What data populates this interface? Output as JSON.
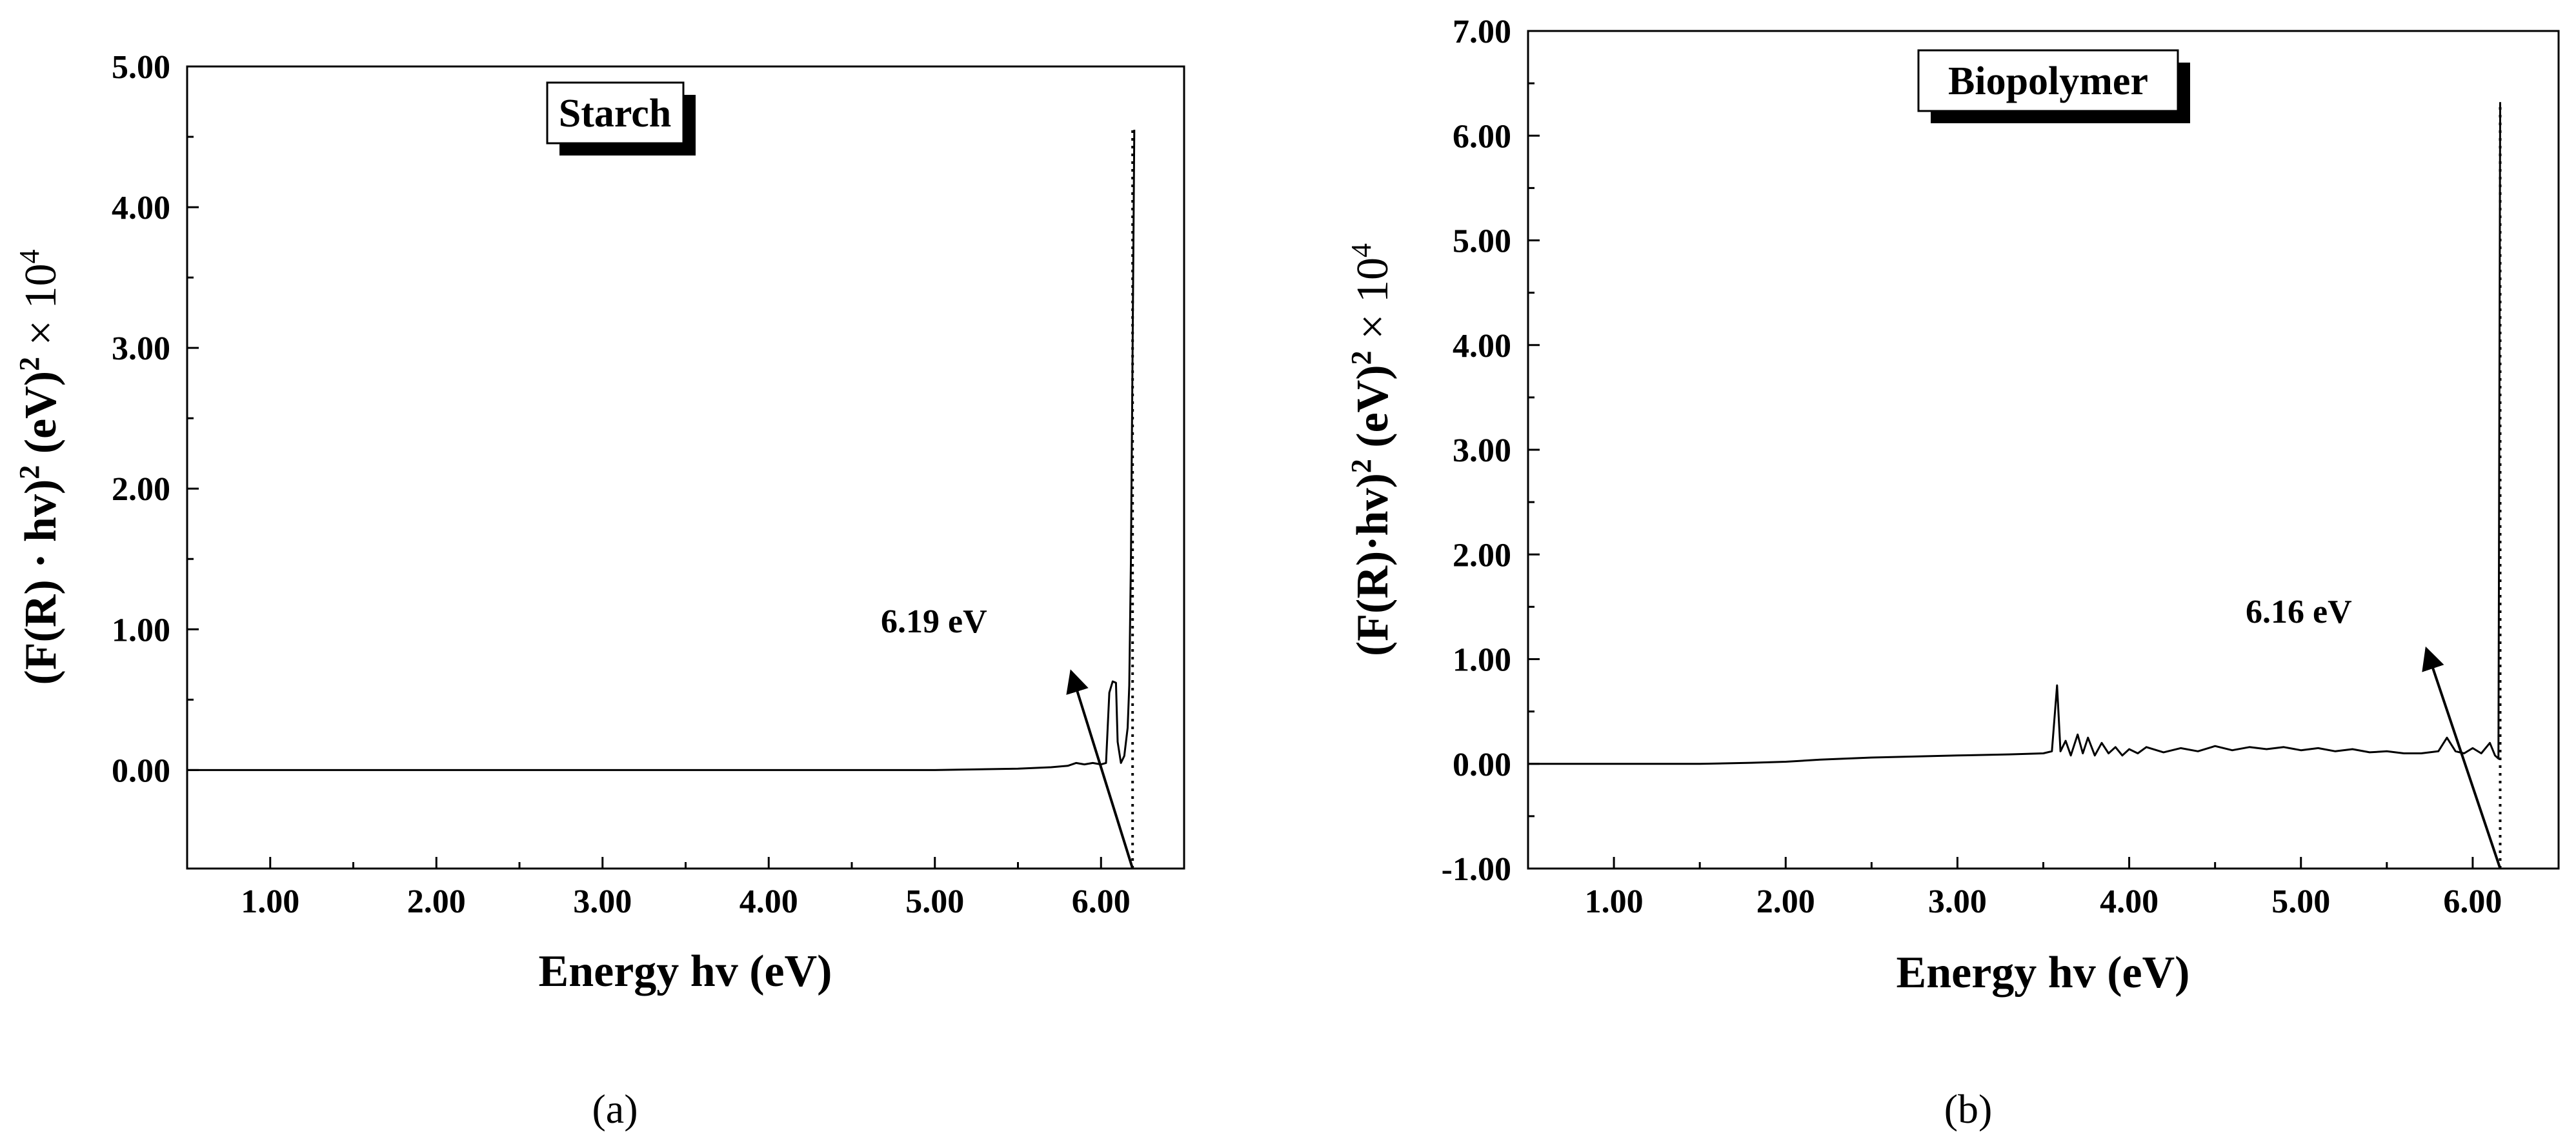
{
  "figure": {
    "captions": [
      "(a)",
      "(b)"
    ]
  },
  "chart_data": [
    {
      "type": "line",
      "title": "Starch",
      "xlabel": "Energy hv (eV)",
      "ylabel_main": "(F(R) · hv)",
      "ylabel_sup1": "2",
      "ylabel_mid": " (eV)",
      "ylabel_sup2": "2",
      "ylabel_tail": " × 10",
      "ylabel_sup3": "4",
      "xlim": [
        0.5,
        6.5
      ],
      "ylim": [
        -0.7,
        5.0
      ],
      "x_ticks": [
        {
          "value": 1,
          "label": "1.00"
        },
        {
          "value": 2,
          "label": "2.00"
        },
        {
          "value": 3,
          "label": "3.00"
        },
        {
          "value": 4,
          "label": "4.00"
        },
        {
          "value": 5,
          "label": "5.00"
        },
        {
          "value": 6,
          "label": "6.00"
        }
      ],
      "y_ticks": [
        {
          "value": 0,
          "label": "0.00"
        },
        {
          "value": 1,
          "label": "1.00"
        },
        {
          "value": 2,
          "label": "2.00"
        },
        {
          "value": 3,
          "label": "3.00"
        },
        {
          "value": 4,
          "label": "4.00"
        },
        {
          "value": 5,
          "label": "5.00"
        }
      ],
      "series": [
        {
          "x": [
            0.5,
            1.0,
            2.0,
            3.0,
            4.0,
            5.0,
            5.5,
            5.7,
            5.8,
            5.85,
            5.9,
            5.95,
            6.0,
            6.03,
            6.05,
            6.07,
            6.09,
            6.1,
            6.12,
            6.14,
            6.16,
            6.17,
            6.18,
            6.19,
            6.2
          ],
          "y": [
            0.0,
            0.0,
            0.0,
            0.0,
            0.0,
            0.0,
            0.01,
            0.02,
            0.03,
            0.05,
            0.04,
            0.05,
            0.04,
            0.05,
            0.55,
            0.63,
            0.62,
            0.2,
            0.05,
            0.1,
            0.3,
            0.6,
            1.5,
            3.0,
            4.55
          ]
        }
      ],
      "band_gap_label": "6.19 eV",
      "band_gap_x": 6.19,
      "arrow_from": [
        6.19,
        -0.7
      ],
      "arrow_to": [
        5.82,
        0.7
      ]
    },
    {
      "type": "line",
      "title": "Biopolymer",
      "xlabel": "Energy hv (eV)",
      "ylabel_main": "(F(R)·hv)",
      "ylabel_sup1": "2",
      "ylabel_mid": " (eV)",
      "ylabel_sup2": "2",
      "ylabel_tail": " × 10",
      "ylabel_sup3": "4",
      "xlim": [
        0.5,
        6.5
      ],
      "ylim": [
        -1.0,
        7.0
      ],
      "x_ticks": [
        {
          "value": 1,
          "label": "1.00"
        },
        {
          "value": 2,
          "label": "2.00"
        },
        {
          "value": 3,
          "label": "3.00"
        },
        {
          "value": 4,
          "label": "4.00"
        },
        {
          "value": 5,
          "label": "5.00"
        },
        {
          "value": 6,
          "label": "6.00"
        }
      ],
      "y_ticks": [
        {
          "value": -1,
          "label": "-1.00"
        },
        {
          "value": 0,
          "label": "0.00"
        },
        {
          "value": 1,
          "label": "1.00"
        },
        {
          "value": 2,
          "label": "2.00"
        },
        {
          "value": 3,
          "label": "3.00"
        },
        {
          "value": 4,
          "label": "4.00"
        },
        {
          "value": 5,
          "label": "5.00"
        },
        {
          "value": 6,
          "label": "6.00"
        },
        {
          "value": 7,
          "label": "7.00"
        }
      ],
      "series": [
        {
          "x": [
            0.5,
            1.0,
            1.5,
            1.8,
            2.0,
            2.2,
            2.5,
            3.0,
            3.3,
            3.5,
            3.55,
            3.58,
            3.6,
            3.63,
            3.66,
            3.7,
            3.73,
            3.76,
            3.8,
            3.84,
            3.88,
            3.92,
            3.96,
            4.0,
            4.05,
            4.1,
            4.2,
            4.3,
            4.4,
            4.5,
            4.6,
            4.7,
            4.8,
            4.9,
            5.0,
            5.1,
            5.2,
            5.3,
            5.4,
            5.5,
            5.6,
            5.7,
            5.8,
            5.85,
            5.9,
            5.95,
            6.0,
            6.05,
            6.1,
            6.13,
            6.15,
            6.16
          ],
          "y": [
            0.0,
            0.0,
            0.0,
            0.01,
            0.02,
            0.04,
            0.06,
            0.08,
            0.09,
            0.1,
            0.12,
            0.75,
            0.12,
            0.22,
            0.08,
            0.28,
            0.1,
            0.25,
            0.08,
            0.2,
            0.1,
            0.16,
            0.08,
            0.14,
            0.1,
            0.16,
            0.11,
            0.15,
            0.12,
            0.17,
            0.13,
            0.16,
            0.14,
            0.16,
            0.13,
            0.15,
            0.12,
            0.14,
            0.11,
            0.12,
            0.1,
            0.1,
            0.12,
            0.25,
            0.12,
            0.1,
            0.15,
            0.1,
            0.2,
            0.08,
            0.05,
            6.32
          ]
        }
      ],
      "band_gap_label": "6.16 eV",
      "band_gap_x": 6.16,
      "arrow_from": [
        6.16,
        -1.0
      ],
      "arrow_to": [
        5.73,
        1.1
      ]
    }
  ]
}
